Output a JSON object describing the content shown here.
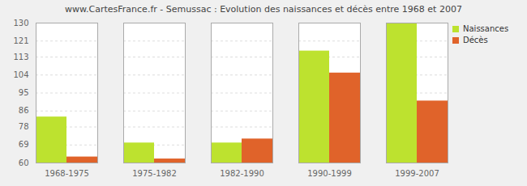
{
  "chart_data": {
    "type": "bar",
    "title": "www.CartesFrance.fr - Semussac : Evolution des naissances et décès entre 1968 et 2007",
    "categories": [
      "1968-1975",
      "1975-1982",
      "1982-1990",
      "1990-1999",
      "1999-2007"
    ],
    "series": [
      {
        "name": "Naissances",
        "color": "#bde22f",
        "values": [
          83,
          70,
          70,
          116,
          130
        ]
      },
      {
        "name": "Décès",
        "color": "#e0632a",
        "values": [
          63,
          62,
          72,
          105,
          91
        ]
      }
    ],
    "ylim": [
      60,
      130
    ],
    "yticks": [
      60,
      69,
      78,
      86,
      95,
      104,
      113,
      121,
      130
    ],
    "grid": true,
    "legend": "right"
  }
}
